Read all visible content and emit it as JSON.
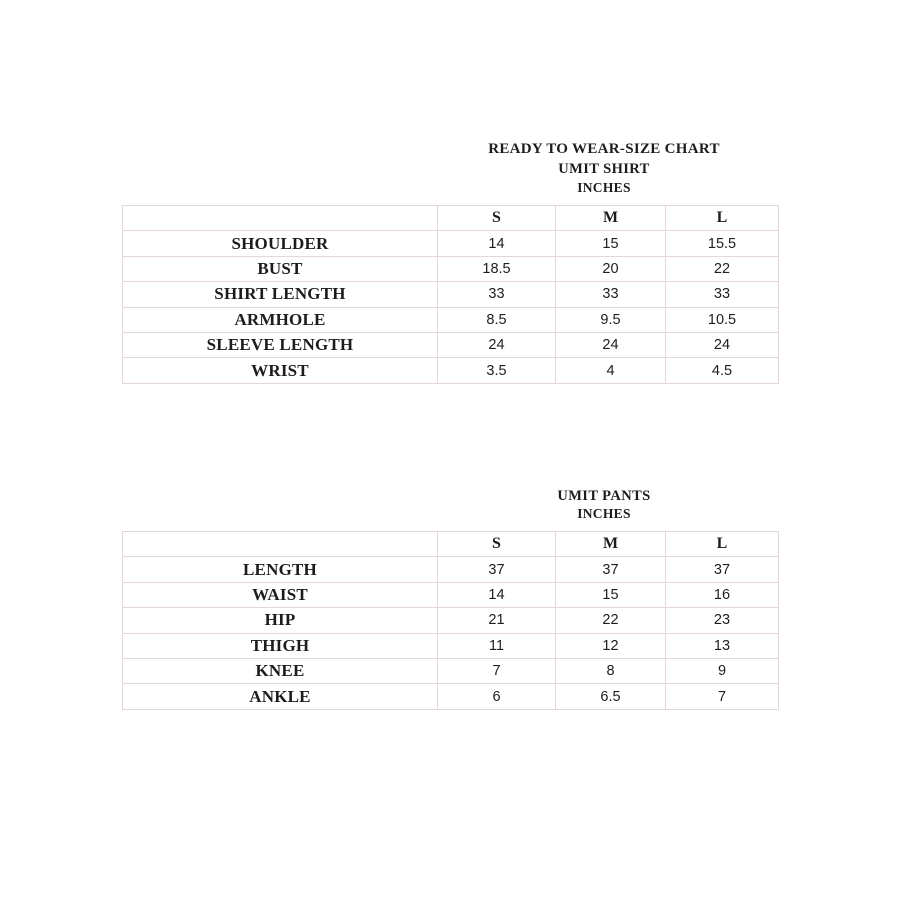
{
  "document": {
    "background": "#ffffff",
    "text_color": "#1c1c1c",
    "table_border_color": "#e5d7d7"
  },
  "shirt": {
    "title": "READY TO WEAR-SIZE CHART",
    "subtitle": "UMIT SHIRT",
    "unit_label": "INCHES",
    "columns": [
      "",
      "S",
      "M",
      "L"
    ],
    "rows": [
      {
        "label": "SHOULDER",
        "values": [
          "14",
          "15",
          "15.5"
        ]
      },
      {
        "label": "BUST",
        "values": [
          "18.5",
          "20",
          "22"
        ]
      },
      {
        "label": "SHIRT LENGTH",
        "values": [
          "33",
          "33",
          "33"
        ]
      },
      {
        "label": "ARMHOLE",
        "values": [
          "8.5",
          "9.5",
          "10.5"
        ]
      },
      {
        "label": "SLEEVE LENGTH",
        "values": [
          "24",
          "24",
          "24"
        ]
      },
      {
        "label": "WRIST",
        "values": [
          "3.5",
          "4",
          "4.5"
        ]
      }
    ]
  },
  "pants": {
    "subtitle": "UMIT PANTS",
    "unit_label": "INCHES",
    "columns": [
      "",
      "S",
      "M",
      "L"
    ],
    "rows": [
      {
        "label": "LENGTH",
        "values": [
          "37",
          "37",
          "37"
        ]
      },
      {
        "label": "WAIST",
        "values": [
          "14",
          "15",
          "16"
        ]
      },
      {
        "label": "HIP",
        "values": [
          "21",
          "22",
          "23"
        ]
      },
      {
        "label": "THIGH",
        "values": [
          "11",
          "12",
          "13"
        ]
      },
      {
        "label": "KNEE",
        "values": [
          "7",
          "8",
          "9"
        ]
      },
      {
        "label": "ANKLE",
        "values": [
          "6",
          "6.5",
          "7"
        ]
      }
    ]
  }
}
